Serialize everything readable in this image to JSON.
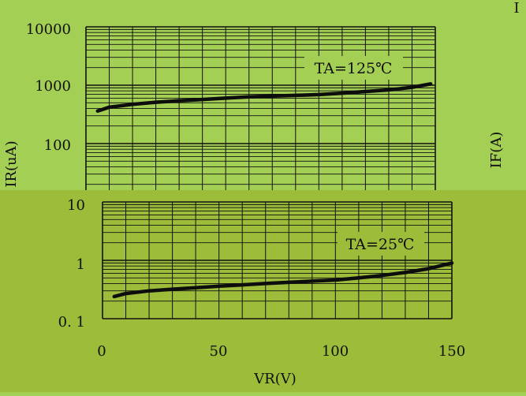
{
  "colors": {
    "top_background": "#a3cf54",
    "bottom_background": "#9cbc3a",
    "grid": "#111111",
    "curve": "#0d0d0d"
  },
  "corner_mark": "I",
  "chart_data": [
    {
      "type": "line",
      "panel": "upper",
      "scale": "log",
      "ylabel": "IR(uA)",
      "y2label": "IF(A)",
      "yticks": [
        "10000",
        "1000",
        "100",
        "10"
      ],
      "ylim": [
        10,
        10000
      ],
      "xlim": [
        0,
        150
      ],
      "grid": true,
      "annotation": "TA=125℃",
      "series": [
        {
          "x": [
            5,
            10,
            20,
            30,
            40,
            50,
            60,
            70,
            80,
            90,
            100,
            110,
            120,
            130,
            140,
            148
          ],
          "y": [
            360,
            420,
            470,
            510,
            540,
            570,
            600,
            630,
            650,
            670,
            690,
            730,
            780,
            830,
            920,
            1050
          ]
        }
      ]
    },
    {
      "type": "line",
      "panel": "lower",
      "scale": "log",
      "yticks": [
        "1",
        "0. 1"
      ],
      "ylim": [
        0.1,
        10
      ],
      "xlim": [
        0,
        150
      ],
      "xticks": [
        "0",
        "50",
        "100",
        "150"
      ],
      "xlabel": "VR(V)",
      "grid": true,
      "annotation": "TA=25℃",
      "series": [
        {
          "x": [
            5,
            10,
            20,
            30,
            40,
            50,
            60,
            70,
            80,
            90,
            100,
            110,
            120,
            130,
            140,
            150
          ],
          "y": [
            0.24,
            0.27,
            0.3,
            0.32,
            0.34,
            0.36,
            0.38,
            0.4,
            0.42,
            0.44,
            0.46,
            0.5,
            0.55,
            0.62,
            0.72,
            0.9
          ]
        }
      ]
    }
  ]
}
